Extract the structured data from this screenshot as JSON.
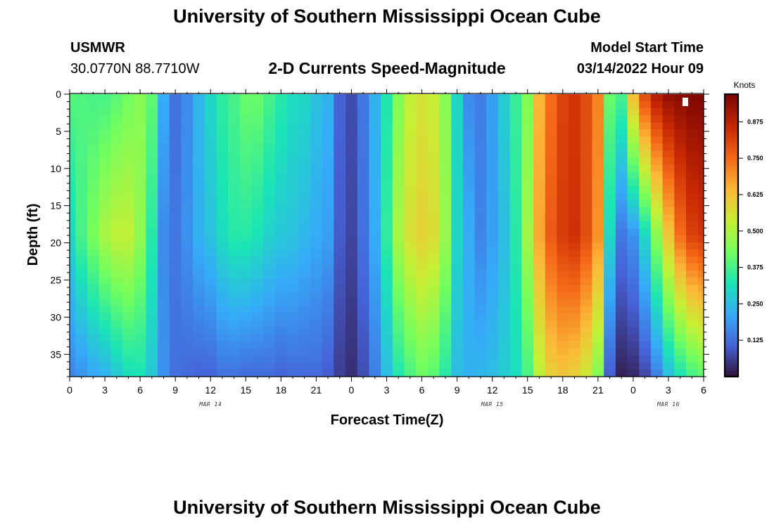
{
  "header": {
    "title": "University of Southern Mississippi Ocean Cube",
    "station": "USMWR",
    "coords": "30.0770N  88.7710W",
    "subtitle": "2-D Currents Speed-Magnitude",
    "start_label": "Model Start Time",
    "start_value": "03/14/2022 Hour 09"
  },
  "footer": {
    "title": "University of Southern Mississippi Ocean Cube"
  },
  "chart_data": {
    "type": "heatmap",
    "title": "2-D Currents Speed-Magnitude",
    "xlabel": "Forecast Time(Z)",
    "ylabel": "Depth (ft)",
    "x_ticks": [
      "0",
      "3",
      "6",
      "9",
      "12",
      "15",
      "18",
      "21",
      "0",
      "3",
      "6",
      "9",
      "12",
      "15",
      "18",
      "21",
      "0",
      "3",
      "6"
    ],
    "x_hours": [
      0,
      3,
      6,
      9,
      12,
      15,
      18,
      21,
      24,
      27,
      30,
      33,
      36,
      39,
      42,
      45,
      48,
      51,
      54
    ],
    "x_range": [
      0,
      54
    ],
    "date_labels": [
      {
        "label": "MAR 14",
        "hour": 12
      },
      {
        "label": "MAR 15",
        "hour": 36
      },
      {
        "label": "MAR 16",
        "hour": 51
      }
    ],
    "y_ticks": [
      "0",
      "5",
      "10",
      "15",
      "20",
      "25",
      "30",
      "35"
    ],
    "y_values": [
      0,
      5,
      10,
      15,
      20,
      25,
      30,
      35
    ],
    "y_range": [
      0,
      38
    ],
    "colorbar": {
      "unit": "Knots",
      "ticks": [
        "0.125",
        "0.250",
        "0.375",
        "0.500",
        "0.625",
        "0.750",
        "0.875"
      ],
      "tick_values": [
        0.125,
        0.25,
        0.375,
        0.5,
        0.625,
        0.75,
        0.875
      ],
      "range": [
        0,
        0.97
      ]
    },
    "columns": {
      "hours": [
        0,
        1,
        2,
        3,
        4,
        5,
        6,
        7,
        8,
        9,
        10,
        11,
        12,
        13,
        14,
        15,
        16,
        17,
        18,
        19,
        20,
        21,
        22,
        23,
        24,
        25,
        26,
        27,
        28,
        29,
        30,
        31,
        32,
        33,
        34,
        35,
        36,
        37,
        38,
        39,
        40,
        41,
        42,
        43,
        44,
        45,
        46,
        47,
        48,
        49,
        50,
        51,
        52,
        53,
        54
      ],
      "surface_knots": [
        0.4,
        0.39,
        0.38,
        0.38,
        0.4,
        0.43,
        0.46,
        0.41,
        0.22,
        0.13,
        0.17,
        0.24,
        0.3,
        0.35,
        0.38,
        0.42,
        0.42,
        0.38,
        0.34,
        0.31,
        0.3,
        0.26,
        0.23,
        0.11,
        0.08,
        0.14,
        0.23,
        0.33,
        0.45,
        0.53,
        0.56,
        0.54,
        0.46,
        0.3,
        0.17,
        0.15,
        0.2,
        0.28,
        0.36,
        0.45,
        0.65,
        0.75,
        0.82,
        0.84,
        0.8,
        0.72,
        0.42,
        0.38,
        0.64,
        0.81,
        0.9,
        0.94,
        0.95,
        0.96,
        0.96
      ],
      "mid_knots": [
        0.3,
        0.38,
        0.44,
        0.5,
        0.53,
        0.53,
        0.47,
        0.34,
        0.17,
        0.14,
        0.18,
        0.23,
        0.26,
        0.31,
        0.34,
        0.34,
        0.32,
        0.29,
        0.27,
        0.26,
        0.24,
        0.22,
        0.2,
        0.1,
        0.07,
        0.13,
        0.22,
        0.35,
        0.5,
        0.57,
        0.6,
        0.58,
        0.48,
        0.3,
        0.22,
        0.16,
        0.2,
        0.25,
        0.34,
        0.49,
        0.67,
        0.78,
        0.83,
        0.85,
        0.8,
        0.7,
        0.3,
        0.14,
        0.18,
        0.3,
        0.46,
        0.62,
        0.75,
        0.82,
        0.84
      ],
      "bottom_knots": [
        0.16,
        0.18,
        0.21,
        0.23,
        0.27,
        0.31,
        0.32,
        0.27,
        0.18,
        0.13,
        0.12,
        0.11,
        0.11,
        0.13,
        0.13,
        0.12,
        0.12,
        0.12,
        0.11,
        0.12,
        0.12,
        0.12,
        0.1,
        0.06,
        0.04,
        0.08,
        0.15,
        0.25,
        0.33,
        0.38,
        0.42,
        0.4,
        0.34,
        0.25,
        0.23,
        0.24,
        0.25,
        0.28,
        0.31,
        0.38,
        0.52,
        0.6,
        0.62,
        0.6,
        0.55,
        0.45,
        0.1,
        0.02,
        0.03,
        0.07,
        0.15,
        0.25,
        0.32,
        0.37,
        0.4
      ]
    }
  },
  "colors": {
    "heat_scale": [
      "#30123b",
      "#4662d7",
      "#36aaf9",
      "#1ae4b6",
      "#72fe5e",
      "#c7ef34",
      "#fbb938",
      "#f56918",
      "#c92903",
      "#7a0403"
    ]
  }
}
